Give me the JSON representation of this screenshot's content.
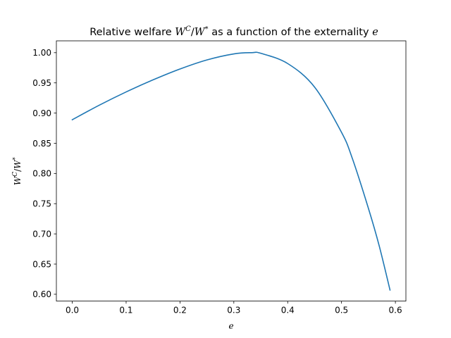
{
  "chart_data": {
    "type": "line",
    "title": {
      "prefix": "Relative welfare ",
      "w1": "W",
      "sup1": "C",
      "slash": "/",
      "w2": "W",
      "sup2": "*",
      "middle": " as a function of the externality ",
      "var": "e"
    },
    "xlabel": "e",
    "ylabel": {
      "w1": "W",
      "sup1": "C",
      "slash": "/",
      "w2": "W",
      "sup2": "*"
    },
    "xlim": [
      -0.0295,
      0.6195
    ],
    "ylim": [
      0.5887,
      1.0196
    ],
    "x_ticks": [
      0.0,
      0.1,
      0.2,
      0.3,
      0.4,
      0.5,
      0.6
    ],
    "x_tick_labels": [
      "0.0",
      "0.1",
      "0.2",
      "0.3",
      "0.4",
      "0.5",
      "0.6"
    ],
    "y_ticks": [
      0.6,
      0.65,
      0.7,
      0.75,
      0.8,
      0.85,
      0.9,
      0.95,
      1.0
    ],
    "y_tick_labels": [
      "0.60",
      "0.65",
      "0.70",
      "0.75",
      "0.80",
      "0.85",
      "0.90",
      "0.95",
      "1.00"
    ],
    "grid": false,
    "series": [
      {
        "color": "#1f77b4",
        "x": [
          0.0,
          0.05,
          0.1,
          0.15,
          0.2,
          0.25,
          0.3,
          0.333,
          0.35,
          0.4,
          0.45,
          0.5,
          0.52,
          0.55,
          0.57,
          0.59
        ],
        "y": [
          0.889,
          0.913,
          0.935,
          0.955,
          0.973,
          0.988,
          0.998,
          1.0,
          0.999,
          0.982,
          0.943,
          0.868,
          0.825,
          0.742,
          0.68,
          0.607
        ]
      }
    ]
  }
}
